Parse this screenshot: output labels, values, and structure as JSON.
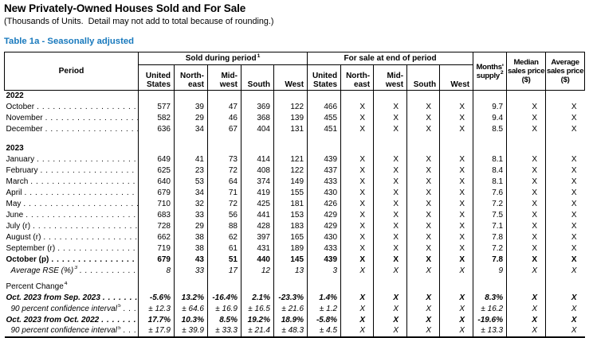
{
  "page": {
    "title": "New Privately-Owned Houses Sold and For Sale",
    "subtitle": "(Thousands of Units.  Detail may not add to total because of rounding.)",
    "table_label": "Table 1a - Seasonally adjusted"
  },
  "colors": {
    "accent_blue": "#1879bd",
    "text": "#000000"
  },
  "table": {
    "period_header": "Period",
    "groups": {
      "sold": {
        "label": "Sold during period",
        "sup": "1"
      },
      "forsale": {
        "label": "For sale at end of period",
        "sup": ""
      }
    },
    "region_cols": [
      {
        "key": "united-states",
        "lines": [
          "United",
          "States"
        ]
      },
      {
        "key": "northeast",
        "lines": [
          "North-",
          "east"
        ]
      },
      {
        "key": "midwest",
        "lines": [
          "Mid-",
          "west"
        ]
      },
      {
        "key": "south",
        "lines": [
          "South"
        ]
      },
      {
        "key": "west",
        "lines": [
          "West"
        ]
      }
    ],
    "months_supply": {
      "line1": "Months'",
      "line2": "supply",
      "sup": "2"
    },
    "median_price": {
      "lines": [
        "Median",
        "sales price",
        "($)"
      ]
    },
    "average_price": {
      "lines": [
        "Average",
        "sales price",
        "($)"
      ]
    },
    "rows": [
      {
        "key": "year-2022",
        "type": "section",
        "label": "2022",
        "dots": false
      },
      {
        "key": "oct-2022",
        "type": "data",
        "label": "October",
        "dots": true,
        "values": [
          "577",
          "39",
          "47",
          "369",
          "122",
          "466",
          "X",
          "X",
          "X",
          "X",
          "9.7",
          "X",
          "X"
        ]
      },
      {
        "key": "nov-2022",
        "type": "data",
        "label": "November",
        "dots": true,
        "values": [
          "582",
          "29",
          "46",
          "368",
          "139",
          "455",
          "X",
          "X",
          "X",
          "X",
          "9.4",
          "X",
          "X"
        ]
      },
      {
        "key": "dec-2022",
        "type": "data",
        "label": "December",
        "dots": true,
        "values": [
          "636",
          "34",
          "67",
          "404",
          "131",
          "451",
          "X",
          "X",
          "X",
          "X",
          "8.5",
          "X",
          "X"
        ]
      },
      {
        "key": "gap-1",
        "type": "gap1"
      },
      {
        "key": "year-2023",
        "type": "section",
        "label": "2023",
        "dots": false
      },
      {
        "key": "jan-2023",
        "type": "data",
        "label": "January",
        "dots": true,
        "values": [
          "649",
          "41",
          "73",
          "414",
          "121",
          "439",
          "X",
          "X",
          "X",
          "X",
          "8.1",
          "X",
          "X"
        ]
      },
      {
        "key": "feb-2023",
        "type": "data",
        "label": "February",
        "dots": true,
        "values": [
          "625",
          "23",
          "72",
          "408",
          "122",
          "437",
          "X",
          "X",
          "X",
          "X",
          "8.4",
          "X",
          "X"
        ]
      },
      {
        "key": "mar-2023",
        "type": "data",
        "label": "March",
        "dots": true,
        "values": [
          "640",
          "53",
          "64",
          "374",
          "149",
          "433",
          "X",
          "X",
          "X",
          "X",
          "8.1",
          "X",
          "X"
        ]
      },
      {
        "key": "apr-2023",
        "type": "data",
        "label": "April",
        "dots": true,
        "values": [
          "679",
          "34",
          "71",
          "419",
          "155",
          "430",
          "X",
          "X",
          "X",
          "X",
          "7.6",
          "X",
          "X"
        ]
      },
      {
        "key": "may-2023",
        "type": "data",
        "label": "May",
        "dots": true,
        "values": [
          "710",
          "32",
          "72",
          "425",
          "181",
          "426",
          "X",
          "X",
          "X",
          "X",
          "7.2",
          "X",
          "X"
        ]
      },
      {
        "key": "jun-2023",
        "type": "data",
        "label": "June",
        "dots": true,
        "values": [
          "683",
          "33",
          "56",
          "441",
          "153",
          "429",
          "X",
          "X",
          "X",
          "X",
          "7.5",
          "X",
          "X"
        ]
      },
      {
        "key": "jul-2023",
        "type": "data",
        "label": "July (r)",
        "dots": true,
        "values": [
          "728",
          "29",
          "88",
          "428",
          "183",
          "429",
          "X",
          "X",
          "X",
          "X",
          "7.1",
          "X",
          "X"
        ]
      },
      {
        "key": "aug-2023",
        "type": "data",
        "label": "August (r)",
        "dots": true,
        "values": [
          "662",
          "38",
          "62",
          "397",
          "165",
          "430",
          "X",
          "X",
          "X",
          "X",
          "7.8",
          "X",
          "X"
        ]
      },
      {
        "key": "sep-2023",
        "type": "data",
        "label": "September (r)",
        "dots": true,
        "values": [
          "719",
          "38",
          "61",
          "431",
          "189",
          "433",
          "X",
          "X",
          "X",
          "X",
          "7.2",
          "X",
          "X"
        ]
      },
      {
        "key": "oct-2023",
        "type": "bold",
        "label": "October (p)",
        "dots": true,
        "values": [
          "679",
          "43",
          "51",
          "440",
          "145",
          "439",
          "X",
          "X",
          "X",
          "X",
          "7.8",
          "X",
          "X"
        ]
      },
      {
        "key": "avg-rse",
        "type": "rse",
        "label": "Average RSE (%)",
        "sup": "3",
        "dots": true,
        "values": [
          "8",
          "33",
          "17",
          "12",
          "13",
          "3",
          "X",
          "X",
          "X",
          "X",
          "9",
          "X",
          "X"
        ]
      },
      {
        "key": "gap-2",
        "type": "gap2"
      },
      {
        "key": "percent-change",
        "type": "pctlabel",
        "label": "Percent Change",
        "sup": "4",
        "dots": false
      },
      {
        "key": "pct-mom",
        "type": "pct",
        "label": "Oct. 2023 from Sep. 2023",
        "dots": true,
        "values": [
          "-5.6%",
          "13.2%",
          "-16.4%",
          "2.1%",
          "-23.3%",
          "1.4%",
          "X",
          "X",
          "X",
          "X",
          "8.3%",
          "X",
          "X"
        ]
      },
      {
        "key": "ci-mom",
        "type": "ci",
        "label": "90 percent confidence interval",
        "sup": "5",
        "dots": true,
        "values": [
          "± 12.3",
          "± 64.6",
          "± 16.9",
          "± 16.5",
          "± 21.6",
          "± 1.2",
          "X",
          "X",
          "X",
          "X",
          "± 16.2",
          "X",
          "X"
        ]
      },
      {
        "key": "pct-yoy",
        "type": "pct",
        "label": "Oct. 2023 from Oct. 2022",
        "dots": true,
        "values": [
          "17.7%",
          "10.3%",
          "8.5%",
          "19.2%",
          "18.9%",
          "-5.8%",
          "X",
          "X",
          "X",
          "X",
          "-19.6%",
          "X",
          "X"
        ]
      },
      {
        "key": "ci-yoy",
        "type": "ci",
        "label": "90 percent confidence interval",
        "sup": "5",
        "dots": true,
        "values": [
          "± 17.9",
          "± 39.9",
          "± 33.3",
          "± 21.4",
          "± 48.3",
          "± 4.5",
          "X",
          "X",
          "X",
          "X",
          "± 13.3",
          "X",
          "X"
        ]
      }
    ]
  }
}
